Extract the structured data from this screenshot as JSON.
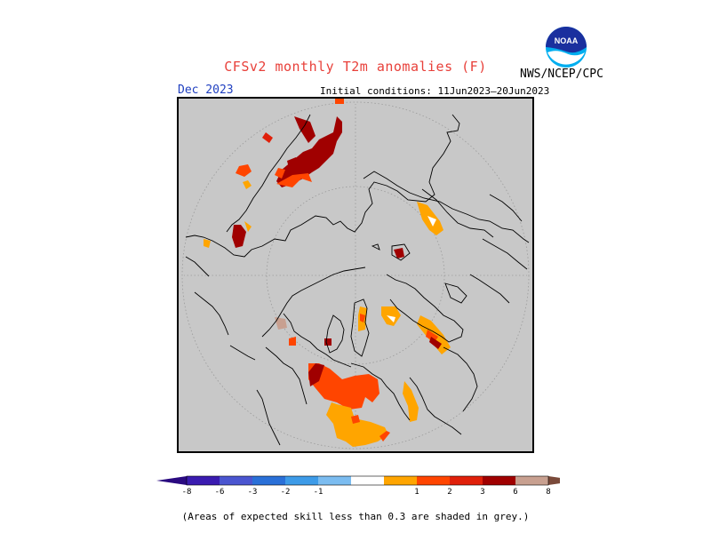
{
  "title": "CFSv2 monthly T2m anomalies (F)",
  "agency": "NWS/NCEP/CPC",
  "logo_text": "NOAA",
  "forecast_month": "Dec 2023",
  "initial_conditions": "Initial conditions: 11Jun2023–20Jun2023",
  "footnote": "(Areas of expected skill less than 0.3 are shaded in grey.)",
  "colors": {
    "map_background": "#c8c8c8",
    "coastline": "#000000",
    "grid": "#9a9a9a"
  },
  "legend": {
    "unit": "F",
    "bins": [
      {
        "label": "-8",
        "color": "#3a1bb0"
      },
      {
        "label": "-6",
        "color": "#4a55d0"
      },
      {
        "label": "-3",
        "color": "#2a70d8"
      },
      {
        "label": "-2",
        "color": "#3d9be8"
      },
      {
        "label": "-1",
        "color": "#7bbcf0"
      },
      {
        "label": "",
        "color": "#ffffff"
      },
      {
        "label": "1",
        "color": "#ffa500"
      },
      {
        "label": "2",
        "color": "#ff4500"
      },
      {
        "label": "3",
        "color": "#e0200a"
      },
      {
        "label": "6",
        "color": "#a00000"
      },
      {
        "label": "8",
        "color": "#c8a090"
      }
    ],
    "tick_labels": [
      "-8",
      "-6",
      "-3",
      "-2",
      "-1",
      "1",
      "2",
      "3",
      "6",
      "8"
    ],
    "low_arrow_color": "#2a0a80",
    "high_arrow_color": "#7a4a3a"
  }
}
